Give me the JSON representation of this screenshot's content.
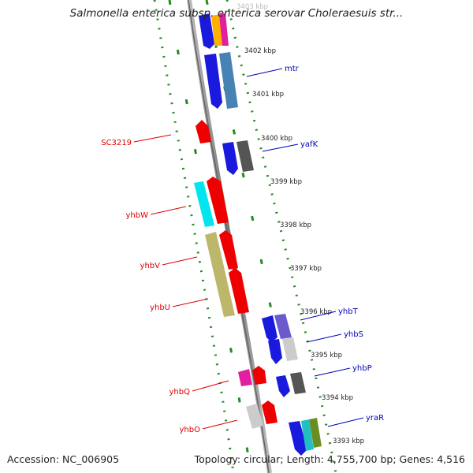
{
  "title": "Salmonella enterica subsp. enterica serovar Choleraesuis str...",
  "footer": {
    "accession": "Accession: NC_006905",
    "summary": "Topology: circular; Length: 4,755,700 bp; Genes: 4,516"
  },
  "colors": {
    "axis": "#888888",
    "tick": "#228b22",
    "left_label": "#dd0000",
    "right_label": "#0000bb",
    "kbp_text": "#222222"
  },
  "kbp_labels": [
    "3403 kbp",
    "3402 kbp",
    "3401 kbp",
    "3400 kbp",
    "3399 kbp",
    "3398 kbp",
    "3397 kbp",
    "3396 kbp",
    "3395 kbp",
    "3394 kbp",
    "3393 kbp"
  ],
  "gene_labels_left": [
    "SC3219",
    "yhbW",
    "yhbV",
    "yhbU",
    "yhbQ",
    "yhbO"
  ],
  "gene_labels_right": [
    "mtr",
    "yafK",
    "yhbT",
    "yhbS",
    "yhbP",
    "yraR"
  ]
}
